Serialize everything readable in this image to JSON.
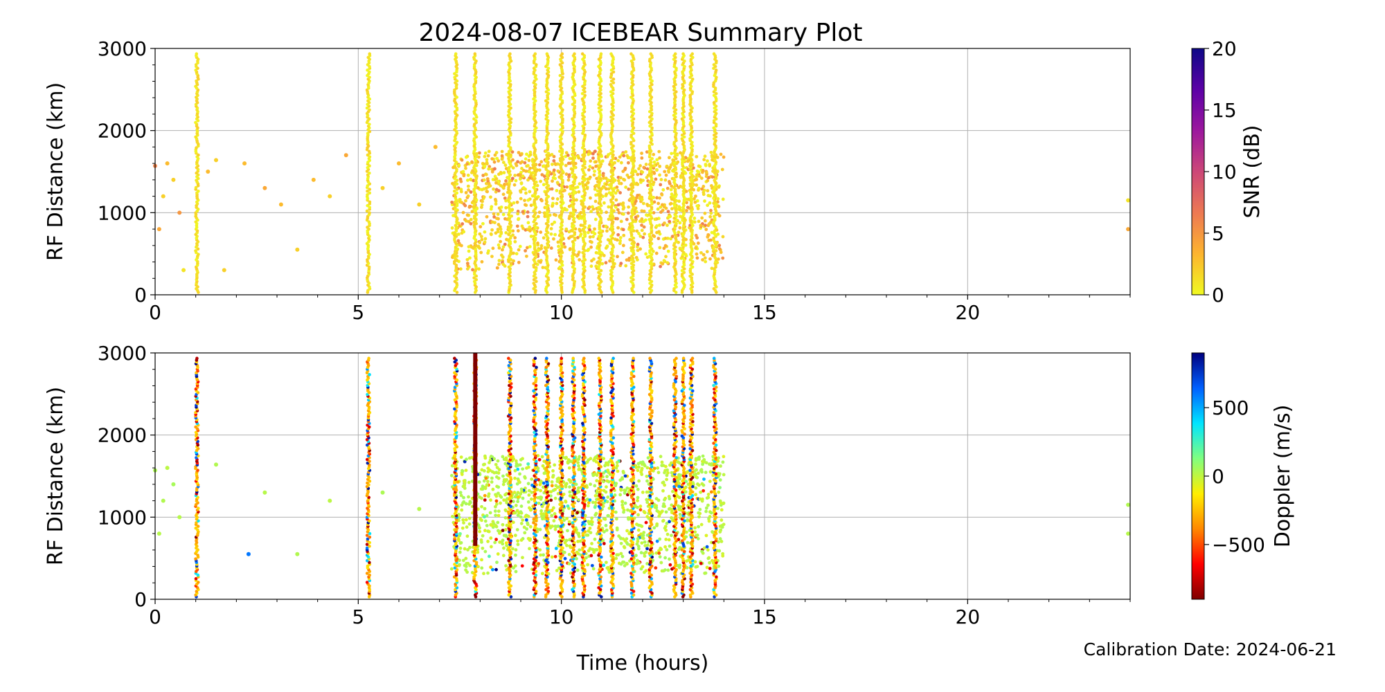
{
  "figure": {
    "title": "2024-08-07 ICEBEAR Summary Plot",
    "footer_note": "Calibration Date: 2024-06-21",
    "shared_xlabel": "Time (hours)"
  },
  "chart_data": [
    {
      "type": "scatter",
      "panel": "top",
      "xlabel": "",
      "ylabel": "RF Distance (km)",
      "xlim": [
        0,
        24
      ],
      "ylim": [
        0,
        3000
      ],
      "x_ticks": [
        0,
        5,
        10,
        15,
        20
      ],
      "y_ticks": [
        0,
        1000,
        2000,
        3000
      ],
      "grid": true,
      "color_variable": "SNR (dB)",
      "colorbar": {
        "label": "SNR (dB)",
        "range": [
          0,
          20
        ],
        "ticks": [
          0,
          5,
          10,
          15,
          20
        ],
        "colormap": "plasma_r",
        "stops": [
          "#f0f921",
          "#fdb42f",
          "#ed7953",
          "#cc4778",
          "#9c179e",
          "#5c01a6",
          "#0d0887"
        ]
      },
      "vertical_streaks_hours": [
        1.03,
        5.25,
        7.4,
        7.88,
        8.73,
        9.35,
        9.65,
        10.0,
        10.3,
        10.55,
        10.95,
        11.25,
        11.75,
        12.2,
        12.8,
        13.0,
        13.2,
        13.78
      ],
      "sparse_points": [
        {
          "x": 0.0,
          "y": 1570,
          "c": 6
        },
        {
          "x": 0.1,
          "y": 800,
          "c": 4
        },
        {
          "x": 0.2,
          "y": 1200,
          "c": 2
        },
        {
          "x": 0.3,
          "y": 1600,
          "c": 3
        },
        {
          "x": 0.45,
          "y": 1400,
          "c": 2
        },
        {
          "x": 0.6,
          "y": 1000,
          "c": 5
        },
        {
          "x": 0.7,
          "y": 300,
          "c": 1
        },
        {
          "x": 1.3,
          "y": 1500,
          "c": 3
        },
        {
          "x": 1.5,
          "y": 1640,
          "c": 2
        },
        {
          "x": 1.7,
          "y": 300,
          "c": 2
        },
        {
          "x": 2.2,
          "y": 1600,
          "c": 3
        },
        {
          "x": 2.7,
          "y": 1300,
          "c": 4
        },
        {
          "x": 3.1,
          "y": 1100,
          "c": 3
        },
        {
          "x": 3.5,
          "y": 550,
          "c": 2
        },
        {
          "x": 3.9,
          "y": 1400,
          "c": 3
        },
        {
          "x": 4.3,
          "y": 1200,
          "c": 2
        },
        {
          "x": 4.7,
          "y": 1700,
          "c": 4
        },
        {
          "x": 5.6,
          "y": 1300,
          "c": 2
        },
        {
          "x": 6.0,
          "y": 1600,
          "c": 3
        },
        {
          "x": 6.5,
          "y": 1100,
          "c": 2
        },
        {
          "x": 6.9,
          "y": 1800,
          "c": 3
        },
        {
          "x": 23.95,
          "y": 800,
          "c": 4
        },
        {
          "x": 23.95,
          "y": 1150,
          "c": 1
        }
      ],
      "dense_region_hours": [
        7.3,
        14.0
      ],
      "dense_region_km": [
        300,
        1750
      ]
    },
    {
      "type": "scatter",
      "panel": "bottom",
      "xlabel": "Time (hours)",
      "ylabel": "RF Distance (km)",
      "xlim": [
        0,
        24
      ],
      "ylim": [
        0,
        3000
      ],
      "x_ticks": [
        0,
        5,
        10,
        15,
        20
      ],
      "y_ticks": [
        0,
        1000,
        2000,
        3000
      ],
      "grid": true,
      "color_variable": "Doppler (m/s)",
      "colorbar": {
        "label": "Doppler (m/s)",
        "range": [
          -900,
          900
        ],
        "ticks": [
          -500,
          0,
          500
        ],
        "tick_labels": [
          "−500",
          "0",
          "500"
        ],
        "colormap": "jet_r",
        "stops": [
          "#7f0000",
          "#ff0000",
          "#ff8800",
          "#ffee00",
          "#80ff80",
          "#00e5ff",
          "#0060ff",
          "#00007f"
        ]
      },
      "vertical_streaks_hours": [
        1.03,
        5.25,
        7.4,
        7.88,
        8.73,
        9.35,
        9.65,
        10.0,
        10.3,
        10.55,
        10.95,
        11.25,
        11.75,
        12.2,
        12.8,
        13.0,
        13.2,
        13.78
      ],
      "dark_red_segment": {
        "x": 7.88,
        "y_from": 650,
        "y_to": 3000,
        "c": -900
      },
      "background_doppler_ms": 0,
      "sparse_points": [
        {
          "x": 0.0,
          "y": 1570,
          "c": 40
        },
        {
          "x": 0.1,
          "y": 800,
          "c": 20
        },
        {
          "x": 0.2,
          "y": 1200,
          "c": 30
        },
        {
          "x": 0.3,
          "y": 1600,
          "c": 10
        },
        {
          "x": 0.45,
          "y": 1400,
          "c": 50
        },
        {
          "x": 0.6,
          "y": 1000,
          "c": 20
        },
        {
          "x": 1.5,
          "y": 1640,
          "c": 30
        },
        {
          "x": 2.3,
          "y": 550,
          "c": 600
        },
        {
          "x": 2.7,
          "y": 1300,
          "c": 20
        },
        {
          "x": 3.5,
          "y": 550,
          "c": 30
        },
        {
          "x": 4.3,
          "y": 1200,
          "c": 10
        },
        {
          "x": 5.6,
          "y": 1300,
          "c": 40
        },
        {
          "x": 6.5,
          "y": 1100,
          "c": 20
        },
        {
          "x": 23.95,
          "y": 800,
          "c": 20
        },
        {
          "x": 23.95,
          "y": 1150,
          "c": 30
        }
      ],
      "dense_region_hours": [
        7.3,
        14.0
      ],
      "dense_region_km": [
        300,
        1750
      ]
    }
  ]
}
